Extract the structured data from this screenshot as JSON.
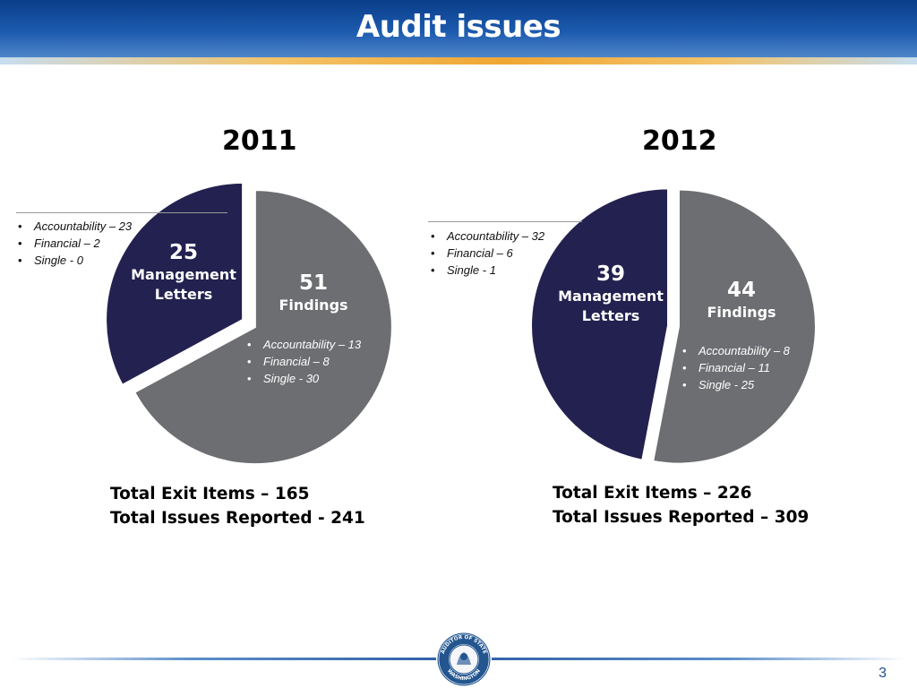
{
  "header": {
    "title": "Audit issues"
  },
  "chart_data": [
    {
      "type": "pie",
      "title": "2011",
      "colors": {
        "management": "#22214f",
        "findings": "#6d6e71"
      },
      "slices": [
        {
          "number": "25",
          "name_lines": [
            "Management",
            "Letters"
          ],
          "value": 25,
          "items": [
            "Accountability – 23",
            "Financial – 2",
            "Single - 0"
          ]
        },
        {
          "number": "51",
          "name_lines": [
            "Findings"
          ],
          "value": 51,
          "items": [
            "Accountability – 13",
            "Financial – 8",
            "Single - 30"
          ]
        }
      ],
      "totals": [
        "Total Exit Items – 165",
        "Total Issues Reported - 241"
      ]
    },
    {
      "type": "pie",
      "title": "2012",
      "colors": {
        "management": "#22214f",
        "findings": "#6d6e71"
      },
      "slices": [
        {
          "number": "39",
          "name_lines": [
            "Management",
            "Letters"
          ],
          "value": 39,
          "items": [
            "Accountability – 32",
            "Financial – 6",
            "Single - 1"
          ]
        },
        {
          "number": "44",
          "name_lines": [
            "Findings"
          ],
          "value": 44,
          "items": [
            "Accountability – 8",
            "Financial – 11",
            "Single - 25"
          ]
        }
      ],
      "totals": [
        "Total Exit Items – 226",
        "Total Issues Reported – 309"
      ]
    }
  ],
  "footer": {
    "seal_top_text": "AUDITOR OF STATE",
    "seal_bottom_text": "WASHINGTON",
    "page_number": "3"
  }
}
